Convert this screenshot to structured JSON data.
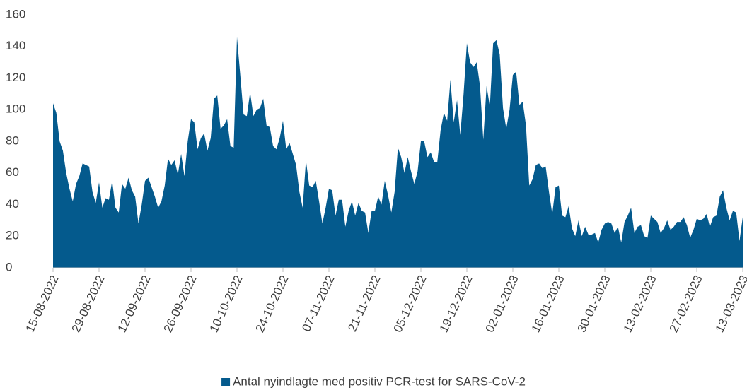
{
  "chart_data": {
    "type": "area",
    "categories": [
      "15-08-2022",
      null,
      null,
      null,
      null,
      null,
      null,
      null,
      null,
      null,
      null,
      null,
      null,
      null,
      "29-08-2022",
      null,
      null,
      null,
      null,
      null,
      null,
      null,
      null,
      null,
      null,
      null,
      null,
      null,
      "12-09-2022",
      null,
      null,
      null,
      null,
      null,
      null,
      null,
      null,
      null,
      null,
      null,
      null,
      null,
      "26-09-2022",
      null,
      null,
      null,
      null,
      null,
      null,
      null,
      null,
      null,
      null,
      null,
      null,
      null,
      "10-10-2022",
      null,
      null,
      null,
      null,
      null,
      null,
      null,
      null,
      null,
      null,
      null,
      null,
      null,
      "24-10-2022",
      null,
      null,
      null,
      null,
      null,
      null,
      null,
      null,
      null,
      null,
      null,
      null,
      null,
      "07-11-2022",
      null,
      null,
      null,
      null,
      null,
      null,
      null,
      null,
      null,
      null,
      null,
      null,
      null,
      "21-11-2022",
      null,
      null,
      null,
      null,
      null,
      null,
      null,
      null,
      null,
      null,
      null,
      null,
      null,
      "05-12-2022",
      null,
      null,
      null,
      null,
      null,
      null,
      null,
      null,
      null,
      null,
      null,
      null,
      null,
      "19-12-2022",
      null,
      null,
      null,
      null,
      null,
      null,
      null,
      null,
      null,
      null,
      null,
      null,
      null,
      "02-01-2023",
      null,
      null,
      null,
      null,
      null,
      null,
      null,
      null,
      null,
      null,
      null,
      null,
      null,
      "16-01-2023",
      null,
      null,
      null,
      null,
      null,
      null,
      null,
      null,
      null,
      null,
      null,
      null,
      null,
      "30-01-2023",
      null,
      null,
      null,
      null,
      null,
      null,
      null,
      null,
      null,
      null,
      null,
      null,
      null,
      "13-02-2023",
      null,
      null,
      null,
      null,
      null,
      null,
      null,
      null,
      null,
      null,
      null,
      null,
      null,
      "27-02-2023",
      null,
      null,
      null,
      null,
      null,
      null,
      null,
      null,
      null,
      null,
      null,
      null,
      null,
      "13-03-2023"
    ],
    "series": [
      {
        "name": "Antal nyindlagte med positiv PCR-test for SARS-CoV-2",
        "color": "#045a8d",
        "values": [
          104,
          98,
          80,
          74,
          60,
          50,
          42,
          53,
          58,
          66,
          65,
          64,
          48,
          41,
          54,
          38,
          44,
          43,
          55,
          38,
          35,
          53,
          50,
          57,
          49,
          45,
          28,
          40,
          55,
          57,
          51,
          45,
          38,
          42,
          52,
          69,
          65,
          68,
          59,
          72,
          58,
          80,
          94,
          92,
          75,
          82,
          85,
          74,
          82,
          107,
          109,
          88,
          90,
          94,
          77,
          76,
          146,
          122,
          97,
          96,
          111,
          96,
          100,
          101,
          107,
          90,
          89,
          77,
          75,
          82,
          93,
          75,
          79,
          72,
          65,
          48,
          38,
          68,
          52,
          51,
          55,
          42,
          28,
          38,
          50,
          49,
          33,
          43,
          43,
          26,
          36,
          42,
          33,
          41,
          36,
          35,
          22,
          36,
          36,
          45,
          40,
          55,
          46,
          35,
          48,
          76,
          70,
          60,
          70,
          61,
          53,
          61,
          80,
          80,
          70,
          73,
          67,
          67,
          87,
          98,
          93,
          119,
          92,
          106,
          84,
          110,
          142,
          130,
          127,
          130,
          115,
          81,
          115,
          102,
          142,
          144,
          135,
          101,
          88,
          100,
          122,
          124,
          103,
          105,
          90,
          52,
          56,
          65,
          66,
          63,
          64,
          48,
          34,
          51,
          52,
          33,
          32,
          39,
          25,
          20,
          30,
          20,
          26,
          21,
          21,
          22,
          16,
          24,
          28,
          29,
          28,
          22,
          26,
          16,
          29,
          33,
          38,
          22,
          26,
          27,
          20,
          19,
          33,
          31,
          29,
          22,
          25,
          30,
          24,
          26,
          29,
          29,
          32,
          27,
          19,
          24,
          31,
          30,
          31,
          34,
          26,
          32,
          33,
          45,
          49,
          38,
          30,
          36,
          35,
          17,
          32
        ]
      }
    ],
    "ylim": [
      0,
      160
    ],
    "yticks": [
      0,
      20,
      40,
      60,
      80,
      100,
      120,
      140,
      160
    ],
    "grid": false
  }
}
